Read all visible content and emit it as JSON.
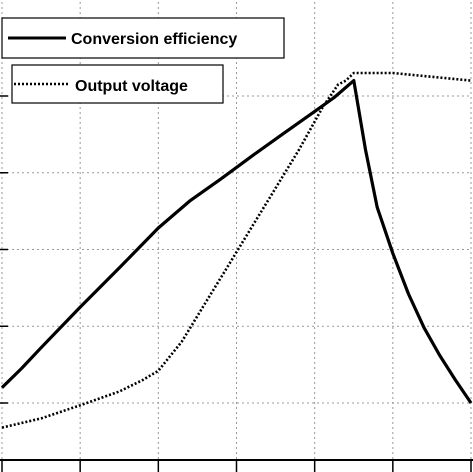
{
  "chart_data": {
    "type": "line",
    "title": "",
    "xlabel": "",
    "ylabel": "",
    "grid": true,
    "legend_placement": "top-left",
    "x_gridlines": [
      0,
      1,
      2,
      3,
      4,
      5,
      6
    ],
    "y_gridlines": [
      0,
      1,
      2,
      3,
      4
    ],
    "xlim": [
      0,
      6
    ],
    "ylim": [
      0,
      5
    ],
    "series": [
      {
        "name": "Conversion efficiency",
        "style": "solid",
        "color": "#000000",
        "x": [
          0,
          0.25,
          0.5,
          1.0,
          1.5,
          2.0,
          2.4,
          2.8,
          3.2,
          3.6,
          4.0,
          4.25,
          4.5,
          4.65,
          4.8,
          5.0,
          5.2,
          5.4,
          5.6,
          5.8,
          6.0
        ],
        "y": [
          0.2,
          0.45,
          0.72,
          1.25,
          1.76,
          2.28,
          2.63,
          2.92,
          3.22,
          3.51,
          3.8,
          3.98,
          4.2,
          3.3,
          2.55,
          1.95,
          1.42,
          0.98,
          0.62,
          0.3,
          0.0
        ]
      },
      {
        "name": "Output voltage",
        "style": "dotted",
        "color": "#000000",
        "x": [
          0,
          0.5,
          1.0,
          1.5,
          1.8,
          2.0,
          2.3,
          2.6,
          2.9,
          3.2,
          3.5,
          3.8,
          4.1,
          4.3,
          4.4,
          4.5,
          4.6,
          5.0,
          5.5,
          6.0
        ],
        "y": [
          -0.32,
          -0.2,
          -0.03,
          0.15,
          0.3,
          0.42,
          0.8,
          1.3,
          1.8,
          2.3,
          2.8,
          3.3,
          3.85,
          4.15,
          4.2,
          4.3,
          4.3,
          4.3,
          4.25,
          4.2
        ]
      }
    ]
  }
}
